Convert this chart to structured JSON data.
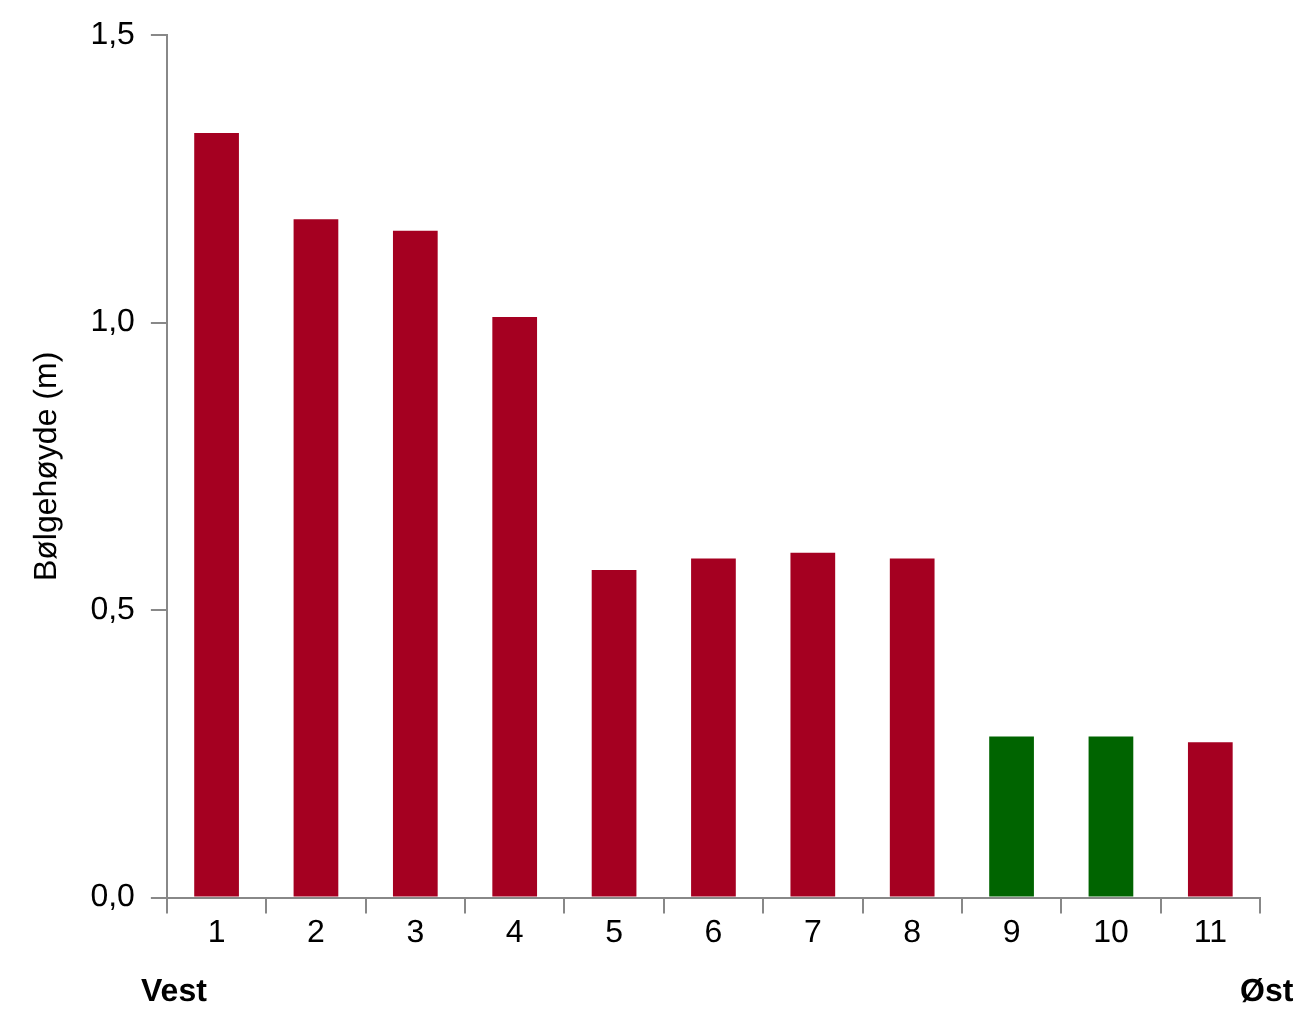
{
  "chart_data": {
    "type": "bar",
    "ylabel": "Bølgehøyde (m)",
    "categories": [
      "1",
      "2",
      "3",
      "4",
      "5",
      "6",
      "7",
      "8",
      "9",
      "10",
      "11"
    ],
    "values": [
      1.33,
      1.18,
      1.16,
      1.01,
      0.57,
      0.59,
      0.6,
      0.59,
      0.28,
      0.28,
      0.27
    ],
    "colors": [
      "#a50021",
      "#a50021",
      "#a50021",
      "#a50021",
      "#a50021",
      "#a50021",
      "#a50021",
      "#a50021",
      "#006400",
      "#006400",
      "#a50021"
    ],
    "ylim": [
      0,
      1.5
    ],
    "yticks": [
      {
        "value": 0,
        "label": "0,0"
      },
      {
        "value": 0.5,
        "label": "0,5"
      },
      {
        "value": 1,
        "label": "1,0"
      },
      {
        "value": 1.5,
        "label": "1,5"
      }
    ],
    "grid": false,
    "legend": false,
    "annotations": [
      "Vest",
      "Øst"
    ]
  }
}
